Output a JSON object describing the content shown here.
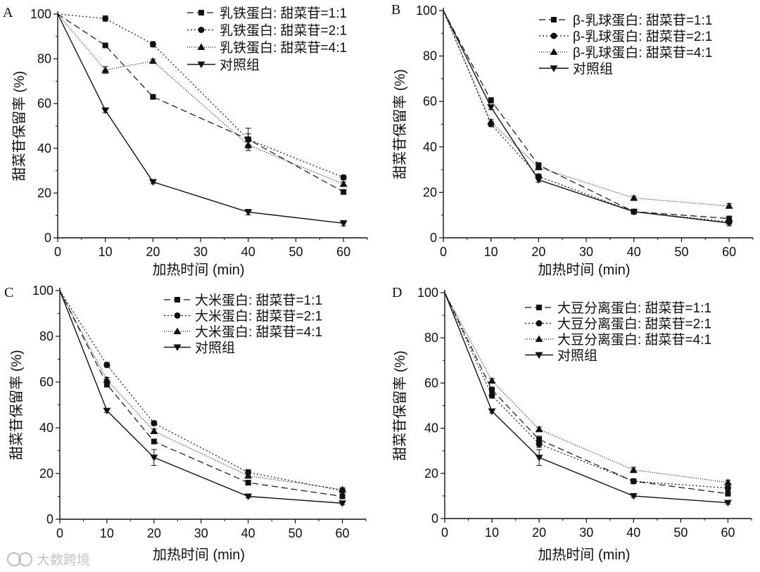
{
  "figure": {
    "watermark": "大数跨境"
  },
  "chart_data": [
    {
      "type": "line",
      "panel_label": "A",
      "xlabel": "加热时间 (min)",
      "ylabel": "甜菜苷保留率 (%)",
      "xlim": [
        0,
        65
      ],
      "ylim": [
        0,
        100
      ],
      "xticks": [
        0,
        10,
        20,
        30,
        40,
        50,
        60
      ],
      "yticks": [
        0,
        20,
        40,
        60,
        80,
        100
      ],
      "x": [
        0,
        10,
        20,
        40,
        60
      ],
      "legend_position": "top-right",
      "series": [
        {
          "name": "乳铁蛋白: 甜菜苷=1:1",
          "style": "dashed",
          "marker": "square",
          "values": [
            100,
            86,
            63,
            44,
            20.5
          ],
          "errors": [
            0,
            0.8,
            0.8,
            2.5,
            1.0
          ]
        },
        {
          "name": "乳铁蛋白: 甜菜苷=2:1",
          "style": "dotted",
          "marker": "circle",
          "values": [
            100,
            98,
            86.5,
            44,
            27
          ],
          "errors": [
            0,
            1.2,
            1.2,
            5.0,
            1.0
          ]
        },
        {
          "name": "乳铁蛋白: 甜菜苷=4:1",
          "style": "dotted-fine",
          "marker": "triangle-up",
          "values": [
            100,
            75,
            79,
            41.5,
            24
          ],
          "errors": [
            0,
            1.5,
            0.8,
            1.5,
            1.0
          ]
        },
        {
          "name": "对照组",
          "style": "solid",
          "marker": "triangle-down",
          "values": [
            100,
            57,
            25,
            11.5,
            6.5
          ],
          "errors": [
            0,
            1.0,
            0.8,
            1.2,
            1.2
          ]
        }
      ]
    },
    {
      "type": "line",
      "panel_label": "B",
      "xlabel": "加热时间 (min)",
      "ylabel": "甜菜苷保留率 (%)",
      "xlim": [
        0,
        65
      ],
      "ylim": [
        0,
        100
      ],
      "xticks": [
        0,
        10,
        20,
        30,
        40,
        50,
        60
      ],
      "yticks": [
        0,
        20,
        40,
        60,
        80,
        100
      ],
      "x": [
        0,
        10,
        20,
        40,
        60
      ],
      "legend_position": "top-right",
      "series": [
        {
          "name": "β-乳球蛋白: 甜菜苷=1:1",
          "style": "dashed",
          "marker": "square",
          "values": [
            100,
            60.5,
            32,
            11.5,
            8.5
          ],
          "errors": [
            0,
            1.2,
            1.0,
            0.8,
            1.0
          ]
        },
        {
          "name": "β-乳球蛋白: 甜菜苷=2:1",
          "style": "dotted",
          "marker": "circle",
          "values": [
            100,
            50,
            27,
            11.5,
            7
          ],
          "errors": [
            0,
            1.0,
            1.0,
            0.8,
            1.0
          ]
        },
        {
          "name": "β-乳球蛋白: 甜菜苷=4:1",
          "style": "dotted-fine",
          "marker": "triangle-up",
          "values": [
            100,
            51,
            31,
            17.5,
            14
          ],
          "errors": [
            0,
            1.0,
            1.0,
            0.8,
            1.0
          ]
        },
        {
          "name": "对照组",
          "style": "solid",
          "marker": "triangle-down",
          "values": [
            100,
            57.5,
            25.5,
            11.5,
            6.5
          ],
          "errors": [
            0,
            1.0,
            1.0,
            0.8,
            1.2
          ]
        }
      ]
    },
    {
      "type": "line",
      "panel_label": "C",
      "xlabel": "加热时间 (min)",
      "ylabel": "甜菜苷保留率 (%)",
      "xlim": [
        0,
        65
      ],
      "ylim": [
        0,
        100
      ],
      "xticks": [
        0,
        10,
        20,
        30,
        40,
        50,
        60
      ],
      "yticks": [
        0,
        20,
        40,
        60,
        80,
        100
      ],
      "x": [
        0,
        10,
        20,
        40,
        60
      ],
      "legend_position": "top-right",
      "series": [
        {
          "name": "大米蛋白: 甜菜苷=1:1",
          "style": "dashed",
          "marker": "square",
          "values": [
            100,
            59,
            34,
            16,
            10
          ],
          "errors": [
            0,
            1.2,
            1.0,
            1.0,
            0.8
          ]
        },
        {
          "name": "大米蛋白: 甜菜苷=2:1",
          "style": "dotted",
          "marker": "circle",
          "values": [
            100,
            67.5,
            42,
            20.5,
            12.5
          ],
          "errors": [
            0,
            1.0,
            1.0,
            1.2,
            0.8
          ]
        },
        {
          "name": "大米蛋白: 甜菜苷=4:1",
          "style": "dotted-fine",
          "marker": "triangle-up",
          "values": [
            100,
            61,
            38.5,
            19,
            13
          ],
          "errors": [
            0,
            1.0,
            1.0,
            1.0,
            0.8
          ]
        },
        {
          "name": "对照组",
          "style": "solid",
          "marker": "triangle-down",
          "values": [
            100,
            47.5,
            27,
            10,
            7
          ],
          "errors": [
            0,
            0.8,
            3.5,
            0.6,
            0.6
          ]
        }
      ]
    },
    {
      "type": "line",
      "panel_label": "D",
      "xlabel": "加热时间 (min)",
      "ylabel": "甜菜苷保留率 (%)",
      "xlim": [
        0,
        65
      ],
      "ylim": [
        0,
        100
      ],
      "xticks": [
        0,
        10,
        20,
        30,
        40,
        50,
        60
      ],
      "yticks": [
        0,
        20,
        40,
        60,
        80,
        100
      ],
      "x": [
        0,
        10,
        20,
        40,
        60
      ],
      "legend_position": "top-right",
      "series": [
        {
          "name": "大豆分离蛋白: 甜菜苷=1:1",
          "style": "dashed",
          "marker": "square",
          "values": [
            100,
            57,
            35,
            16.5,
            11
          ],
          "errors": [
            0,
            1.2,
            1.5,
            0.8,
            0.8
          ]
        },
        {
          "name": "大豆分离蛋白: 甜菜苷=2:1",
          "style": "dotted",
          "marker": "circle",
          "values": [
            100,
            54.5,
            33,
            16.5,
            13.5
          ],
          "errors": [
            0,
            1.2,
            1.5,
            0.8,
            1.0
          ]
        },
        {
          "name": "大豆分离蛋白: 甜菜苷=4:1",
          "style": "dotted-fine",
          "marker": "triangle-up",
          "values": [
            100,
            61,
            39.5,
            21.5,
            16
          ],
          "errors": [
            0,
            1.0,
            1.0,
            1.2,
            1.0
          ]
        },
        {
          "name": "对照组",
          "style": "solid",
          "marker": "triangle-down",
          "values": [
            100,
            47.5,
            27,
            10,
            7
          ],
          "errors": [
            0,
            0.8,
            3.5,
            0.6,
            0.6
          ]
        }
      ]
    }
  ]
}
